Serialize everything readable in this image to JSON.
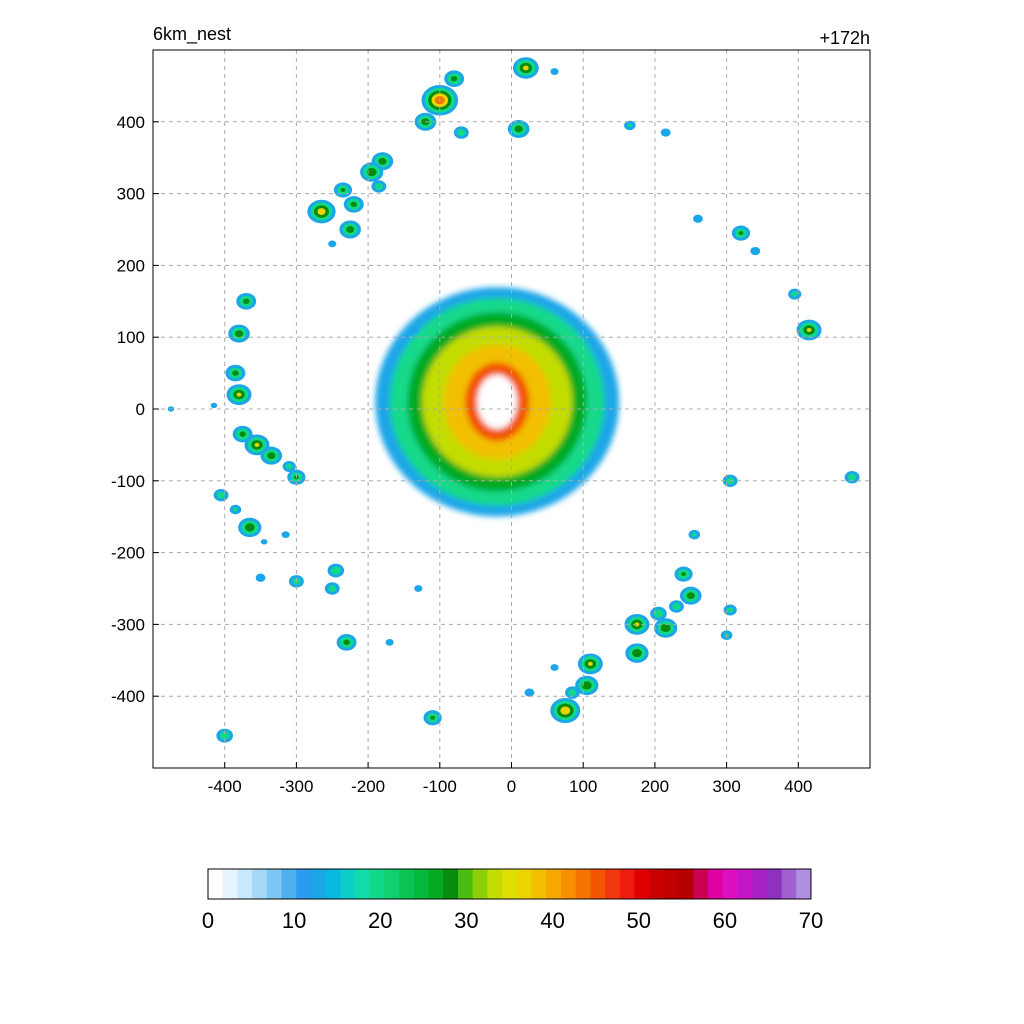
{
  "title_left": "6km_nest",
  "title_right": "+172h",
  "chart_data": {
    "type": "heatmap",
    "title": "6km_nest",
    "subtitle": "+172h",
    "xlim": [
      -500,
      500
    ],
    "ylim": [
      -500,
      500
    ],
    "xticks": [
      -400,
      -300,
      -200,
      -100,
      0,
      100,
      200,
      300,
      400
    ],
    "yticks": [
      -400,
      -300,
      -200,
      -100,
      0,
      100,
      200,
      300,
      400
    ],
    "grid": true,
    "colorbar": {
      "min": 0,
      "max": 70,
      "tick_values": [
        0,
        10,
        20,
        30,
        40,
        50,
        60,
        70
      ],
      "tick_labels": [
        "0",
        "10",
        "20",
        "30",
        "40",
        "50",
        "60",
        "70"
      ],
      "colors": [
        "#ffffff",
        "#e6f4fd",
        "#c8e8fb",
        "#a6d8f7",
        "#7ec6f4",
        "#4fb0f0",
        "#2a9bee",
        "#1aa6e8",
        "#09b9e0",
        "#0ccfc9",
        "#10dca8",
        "#12d98a",
        "#10d070",
        "#0cc356",
        "#06b83c",
        "#04aa22",
        "#088c10",
        "#4cbd10",
        "#8ccf08",
        "#c2dc04",
        "#e0e000",
        "#ecd400",
        "#f2c000",
        "#f6a800",
        "#f69000",
        "#f47400",
        "#f25400",
        "#f03810",
        "#ee1c10",
        "#e00000",
        "#cc0000",
        "#c00000",
        "#b40000",
        "#cc0050",
        "#e000a0",
        "#dc10c0",
        "#c414c8",
        "#a820c4",
        "#9030c0",
        "#a060d0",
        "#b090e0"
      ]
    },
    "features": {
      "eye_center": [
        -20,
        10
      ],
      "eye_radius": 28,
      "core_rings": [
        {
          "rx": 45,
          "ry": 55,
          "value": 45
        },
        {
          "rx": 75,
          "ry": 80,
          "value": 38
        },
        {
          "rx": 105,
          "ry": 105,
          "value": 33
        },
        {
          "rx": 125,
          "ry": 125,
          "value": 27
        },
        {
          "rx": 150,
          "ry": 145,
          "value": 20
        },
        {
          "rx": 170,
          "ry": 160,
          "value": 12
        }
      ],
      "cells": [
        {
          "x": -100,
          "y": 430,
          "v": 48
        },
        {
          "x": -120,
          "y": 400,
          "v": 30
        },
        {
          "x": -80,
          "y": 460,
          "v": 28
        },
        {
          "x": 20,
          "y": 475,
          "v": 35
        },
        {
          "x": 60,
          "y": 470,
          "v": 14
        },
        {
          "x": 10,
          "y": 390,
          "v": 30
        },
        {
          "x": -70,
          "y": 385,
          "v": 22
        },
        {
          "x": -180,
          "y": 345,
          "v": 30
        },
        {
          "x": -195,
          "y": 330,
          "v": 32
        },
        {
          "x": -235,
          "y": 305,
          "v": 26
        },
        {
          "x": -265,
          "y": 275,
          "v": 38
        },
        {
          "x": -220,
          "y": 285,
          "v": 28
        },
        {
          "x": -225,
          "y": 250,
          "v": 30
        },
        {
          "x": -250,
          "y": 230,
          "v": 14
        },
        {
          "x": -185,
          "y": 310,
          "v": 22
        },
        {
          "x": -370,
          "y": 150,
          "v": 28
        },
        {
          "x": -380,
          "y": 105,
          "v": 30
        },
        {
          "x": -385,
          "y": 50,
          "v": 28
        },
        {
          "x": -380,
          "y": 20,
          "v": 34
        },
        {
          "x": -475,
          "y": 0,
          "v": 12
        },
        {
          "x": -415,
          "y": 5,
          "v": 12
        },
        {
          "x": -375,
          "y": -35,
          "v": 28
        },
        {
          "x": -355,
          "y": -50,
          "v": 34
        },
        {
          "x": -335,
          "y": -65,
          "v": 30
        },
        {
          "x": -310,
          "y": -80,
          "v": 20
        },
        {
          "x": -300,
          "y": -95,
          "v": 26
        },
        {
          "x": -405,
          "y": -120,
          "v": 22
        },
        {
          "x": -385,
          "y": -140,
          "v": 18
        },
        {
          "x": -365,
          "y": -165,
          "v": 32
        },
        {
          "x": -345,
          "y": -185,
          "v": 12
        },
        {
          "x": -315,
          "y": -175,
          "v": 14
        },
        {
          "x": -245,
          "y": -225,
          "v": 24
        },
        {
          "x": -300,
          "y": -240,
          "v": 22
        },
        {
          "x": -250,
          "y": -250,
          "v": 22
        },
        {
          "x": -350,
          "y": -235,
          "v": 16
        },
        {
          "x": -230,
          "y": -325,
          "v": 28
        },
        {
          "x": -170,
          "y": -325,
          "v": 14
        },
        {
          "x": -130,
          "y": -250,
          "v": 14
        },
        {
          "x": -110,
          "y": -430,
          "v": 26
        },
        {
          "x": -400,
          "y": -455,
          "v": 24
        },
        {
          "x": 75,
          "y": -420,
          "v": 40
        },
        {
          "x": 110,
          "y": -355,
          "v": 34
        },
        {
          "x": 105,
          "y": -385,
          "v": 32
        },
        {
          "x": 85,
          "y": -395,
          "v": 22
        },
        {
          "x": 25,
          "y": -395,
          "v": 16
        },
        {
          "x": 60,
          "y": -360,
          "v": 14
        },
        {
          "x": 175,
          "y": -300,
          "v": 34
        },
        {
          "x": 175,
          "y": -340,
          "v": 32
        },
        {
          "x": 205,
          "y": -285,
          "v": 24
        },
        {
          "x": 215,
          "y": -305,
          "v": 32
        },
        {
          "x": 240,
          "y": -230,
          "v": 26
        },
        {
          "x": 250,
          "y": -260,
          "v": 30
        },
        {
          "x": 230,
          "y": -275,
          "v": 22
        },
        {
          "x": 305,
          "y": -280,
          "v": 20
        },
        {
          "x": 300,
          "y": -315,
          "v": 18
        },
        {
          "x": 255,
          "y": -175,
          "v": 18
        },
        {
          "x": 305,
          "y": -100,
          "v": 22
        },
        {
          "x": 475,
          "y": -95,
          "v": 22
        },
        {
          "x": 415,
          "y": 110,
          "v": 34
        },
        {
          "x": 395,
          "y": 160,
          "v": 20
        },
        {
          "x": 320,
          "y": 245,
          "v": 26
        },
        {
          "x": 340,
          "y": 220,
          "v": 16
        },
        {
          "x": 260,
          "y": 265,
          "v": 16
        },
        {
          "x": 165,
          "y": 395,
          "v": 18
        },
        {
          "x": 215,
          "y": 385,
          "v": 16
        },
        {
          "x": -135,
          "y": 110,
          "v": 14
        }
      ]
    }
  }
}
